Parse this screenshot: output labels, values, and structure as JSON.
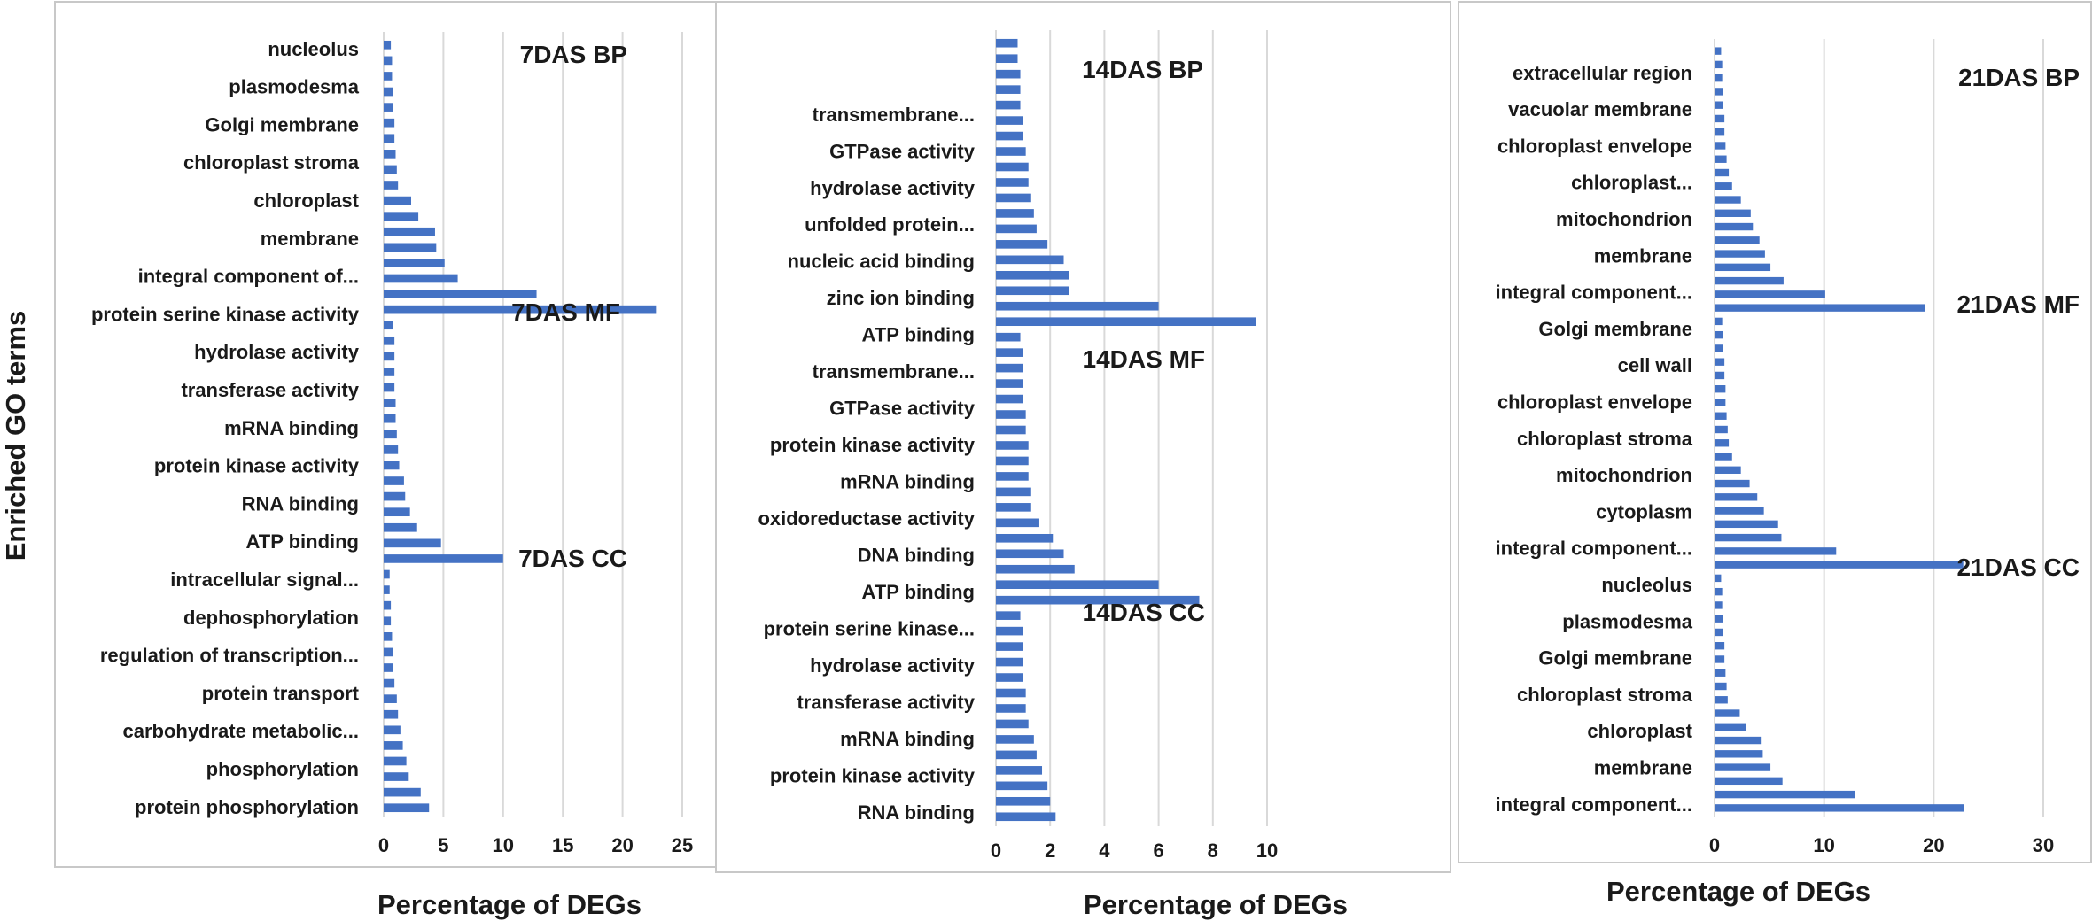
{
  "figure": {
    "ylabel": "Enriched GO terms"
  },
  "chart_data": [
    {
      "type": "bar",
      "orientation": "horizontal",
      "title": "7DAS",
      "xlabel": "Percentage of DEGs",
      "ylabel": "Enriched GO terms",
      "xlim": [
        0,
        25
      ],
      "xticks": [
        0,
        5,
        10,
        15,
        20,
        25
      ],
      "grid": true,
      "sections": [
        {
          "label": "7DAS BP",
          "values": [
            0.6,
            0.7,
            0.7,
            0.8,
            0.8,
            0.9,
            0.9,
            1.0,
            1.1,
            1.2,
            2.3,
            2.9,
            4.3,
            4.4,
            5.1,
            6.2,
            12.8,
            22.8
          ]
        },
        {
          "label": "7DAS MF",
          "values": [
            0.8,
            0.9,
            0.9,
            0.9,
            0.9,
            1.0,
            1.0,
            1.1,
            1.2,
            1.3,
            1.7,
            1.8,
            2.2,
            2.8,
            4.8,
            10.0
          ]
        },
        {
          "label": "7DAS CC",
          "values": [
            0.5,
            0.5,
            0.6,
            0.6,
            0.7,
            0.8,
            0.8,
            0.9,
            1.1,
            1.2,
            1.4,
            1.6,
            1.9,
            2.1,
            3.1,
            3.8
          ]
        }
      ],
      "labels": [
        "nucleolus",
        "plasmodesma",
        "Golgi membrane",
        "chloroplast stroma",
        "chloroplast",
        "membrane",
        "integral component of...",
        "protein serine kinase activity",
        "hydrolase activity",
        "transferase activity",
        "mRNA binding",
        "protein kinase activity",
        "RNA binding",
        "ATP binding",
        "intracellular signal...",
        "dephosphorylation",
        "regulation of transcription...",
        "protein transport",
        "carbohydrate metabolic...",
        "phosphorylation",
        "protein phosphorylation"
      ]
    },
    {
      "type": "bar",
      "orientation": "horizontal",
      "title": "14DAS",
      "xlabel": "Percentage of DEGs",
      "xlim": [
        0,
        10
      ],
      "xticks": [
        0,
        2,
        4,
        6,
        8,
        10
      ],
      "grid": true,
      "sections": [
        {
          "label": "14DAS BP",
          "values": [
            0.8,
            0.8,
            0.9,
            0.9,
            0.9,
            1.0,
            1.0,
            1.1,
            1.2,
            1.2,
            1.3,
            1.4,
            1.5,
            1.9,
            2.5,
            2.7,
            2.7,
            6.0,
            9.6
          ]
        },
        {
          "label": "14DAS MF",
          "values": [
            0.9,
            1.0,
            1.0,
            1.0,
            1.0,
            1.1,
            1.1,
            1.2,
            1.2,
            1.2,
            1.3,
            1.3,
            1.6,
            2.1,
            2.5,
            2.9,
            6.0,
            7.5
          ]
        },
        {
          "label": "14DAS CC",
          "values": [
            0.9,
            1.0,
            1.0,
            1.0,
            1.0,
            1.1,
            1.1,
            1.2,
            1.4,
            1.5,
            1.7,
            1.9,
            2.0,
            2.2
          ]
        }
      ],
      "labels": [
        "transmembrane...",
        "GTPase activity",
        "hydrolase activity",
        "unfolded protein...",
        "nucleic acid binding",
        "zinc ion binding",
        "ATP binding",
        "transmembrane...",
        "GTPase activity",
        "protein kinase activity",
        "mRNA binding",
        "oxidoreductase activity",
        "DNA binding",
        "ATP binding",
        "protein serine kinase...",
        "hydrolase activity",
        "transferase activity",
        "mRNA binding",
        "protein kinase activity",
        "RNA binding"
      ]
    },
    {
      "type": "bar",
      "orientation": "horizontal",
      "title": "21DAS",
      "xlabel": "Percentage of DEGs",
      "xlim": [
        0,
        30
      ],
      "xticks": [
        0,
        10,
        20,
        30
      ],
      "grid": true,
      "sections": [
        {
          "label": "21DAS BP",
          "values": [
            0.6,
            0.7,
            0.7,
            0.8,
            0.8,
            0.9,
            0.9,
            1.0,
            1.1,
            1.3,
            1.6,
            2.4,
            3.3,
            3.5,
            4.1,
            4.6,
            5.1,
            6.3,
            10.1,
            19.2
          ]
        },
        {
          "label": "21DAS MF",
          "values": [
            0.7,
            0.8,
            0.8,
            0.9,
            0.9,
            1.0,
            1.0,
            1.1,
            1.2,
            1.3,
            1.6,
            2.4,
            3.2,
            3.9,
            4.5,
            5.8,
            6.1,
            11.1,
            22.7
          ]
        },
        {
          "label": "21DAS CC",
          "values": [
            0.6,
            0.7,
            0.7,
            0.8,
            0.8,
            0.9,
            0.9,
            1.0,
            1.1,
            1.2,
            2.3,
            2.9,
            4.3,
            4.4,
            5.1,
            6.2,
            12.8,
            22.8
          ]
        }
      ],
      "labels": [
        "extracellular region",
        "vacuolar membrane",
        "chloroplast envelope",
        "chloroplast...",
        "mitochondrion",
        "membrane",
        "integral component...",
        "Golgi membrane",
        "cell wall",
        "chloroplast envelope",
        "chloroplast stroma",
        "mitochondrion",
        "cytoplasm",
        "integral component...",
        "nucleolus",
        "plasmodesma",
        "Golgi membrane",
        "chloroplast stroma",
        "chloroplast",
        "membrane",
        "integral component..."
      ]
    }
  ],
  "style": {
    "bar_color": "#4472c4",
    "grid_color": "#d9d9d9",
    "frame_color": "#c8c8c8",
    "text_color": "#1a1a1a"
  }
}
